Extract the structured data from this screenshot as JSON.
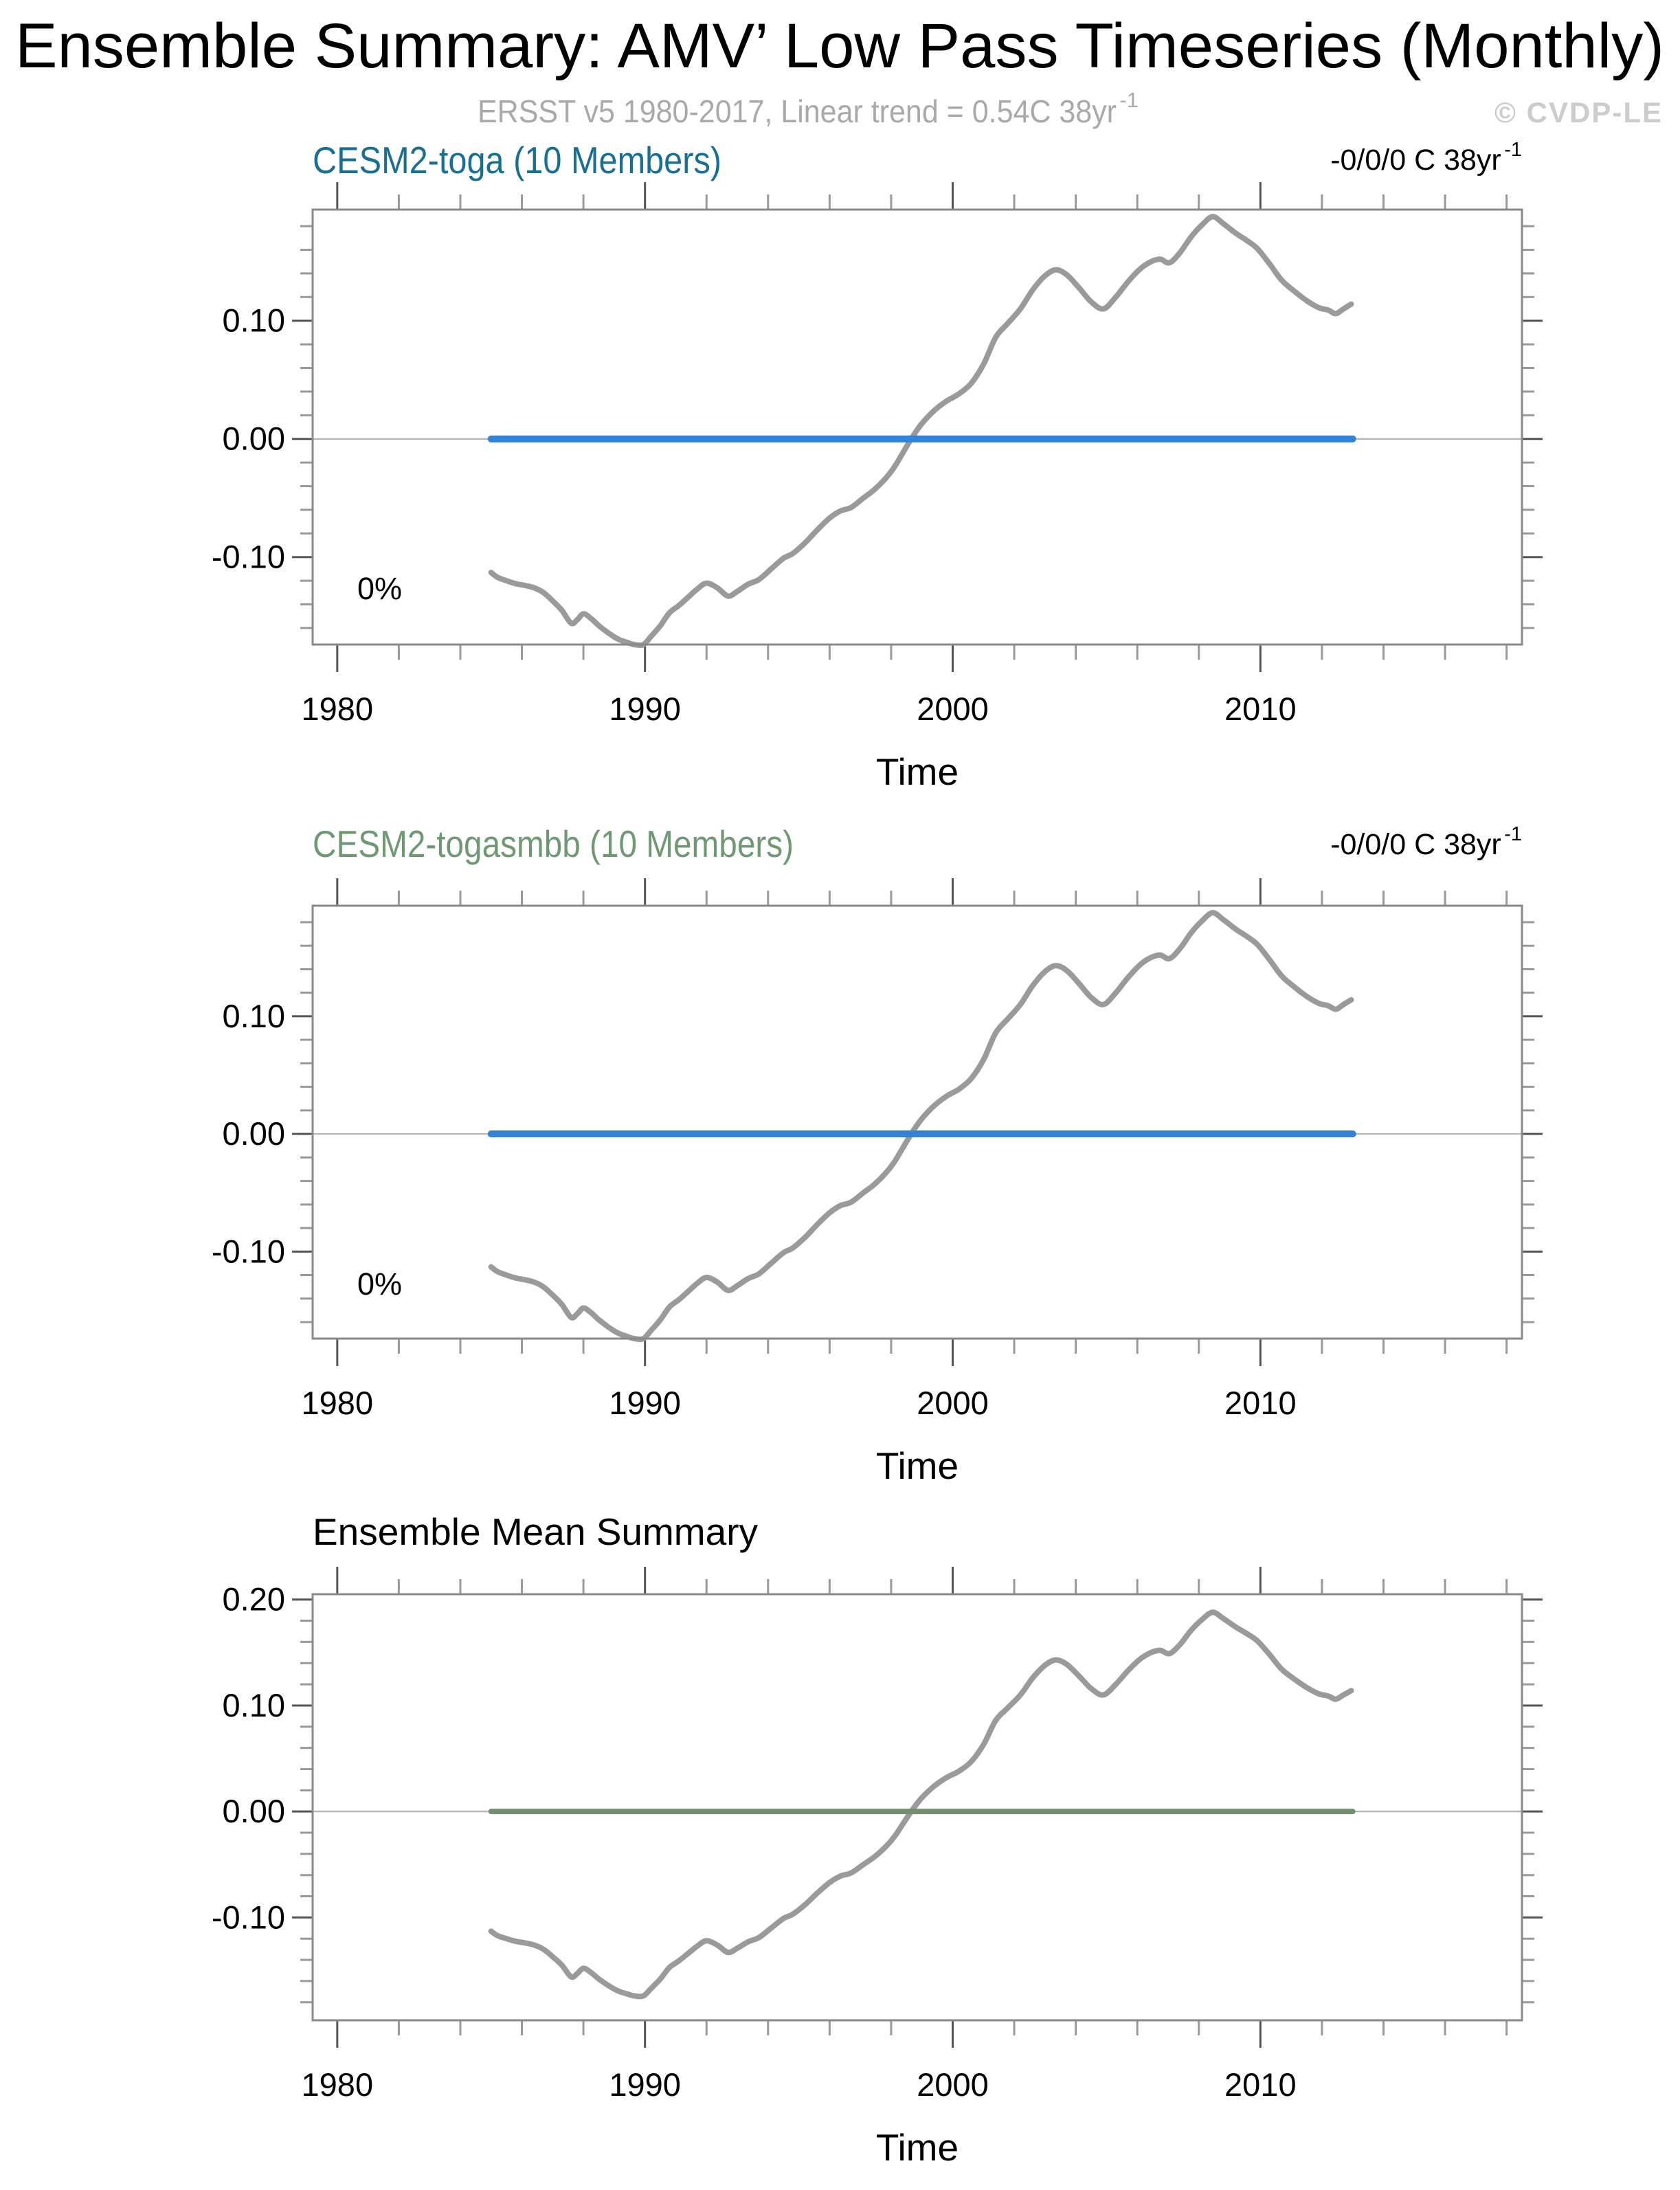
{
  "header": {
    "title": "Ensemble Summary: AMV’ Low Pass Timeseries (Monthly)",
    "subtitle": {
      "main": "ERSST v5 1980-2017, Linear trend = 0.54C 38yr",
      "sup": "-1"
    },
    "watermark": "© CVDP-LE"
  },
  "chart_data": {
    "type": "line",
    "x_axis": {
      "label": "Time",
      "major_ticks": [
        1980,
        1990,
        2000,
        2010
      ],
      "tick_labels": [
        "1980",
        "1990",
        "2000",
        "2010"
      ],
      "minor_step_years": 2,
      "xlim": [
        1979.2,
        2018.5
      ]
    },
    "y_minor_step": 0.02,
    "observed": {
      "name": "ERSST v5 AMV low-pass timeseries",
      "color": "#9a9a9a",
      "points": [
        [
          1985.0,
          -0.113
        ],
        [
          1985.2,
          -0.117
        ],
        [
          1985.5,
          -0.12
        ],
        [
          1985.8,
          -0.1225
        ],
        [
          1986.1,
          -0.124
        ],
        [
          1986.4,
          -0.126
        ],
        [
          1986.7,
          -0.13
        ],
        [
          1987.0,
          -0.137
        ],
        [
          1987.3,
          -0.145
        ],
        [
          1987.6,
          -0.156
        ],
        [
          1987.8,
          -0.153
        ],
        [
          1988.0,
          -0.148
        ],
        [
          1988.25,
          -0.152
        ],
        [
          1988.5,
          -0.158
        ],
        [
          1988.8,
          -0.164
        ],
        [
          1989.1,
          -0.169
        ],
        [
          1989.4,
          -0.172
        ],
        [
          1989.65,
          -0.174
        ],
        [
          1989.95,
          -0.174
        ],
        [
          1990.2,
          -0.167
        ],
        [
          1990.5,
          -0.158
        ],
        [
          1990.8,
          -0.147
        ],
        [
          1991.1,
          -0.141
        ],
        [
          1991.4,
          -0.134
        ],
        [
          1991.7,
          -0.127
        ],
        [
          1992.0,
          -0.122
        ],
        [
          1992.35,
          -0.126
        ],
        [
          1992.7,
          -0.133
        ],
        [
          1993.0,
          -0.129
        ],
        [
          1993.35,
          -0.123
        ],
        [
          1993.7,
          -0.119
        ],
        [
          1994.1,
          -0.11
        ],
        [
          1994.5,
          -0.101
        ],
        [
          1994.8,
          -0.097
        ],
        [
          1995.2,
          -0.088
        ],
        [
          1995.6,
          -0.077
        ],
        [
          1996.0,
          -0.067
        ],
        [
          1996.35,
          -0.061
        ],
        [
          1996.7,
          -0.058
        ],
        [
          1997.1,
          -0.05
        ],
        [
          1997.45,
          -0.043
        ],
        [
          1997.8,
          -0.034
        ],
        [
          1998.1,
          -0.024
        ],
        [
          1998.4,
          -0.011
        ],
        [
          1998.7,
          0.002
        ],
        [
          1999.0,
          0.013
        ],
        [
          1999.4,
          0.024
        ],
        [
          1999.8,
          0.032
        ],
        [
          2000.2,
          0.038
        ],
        [
          2000.6,
          0.047
        ],
        [
          2001.0,
          0.063
        ],
        [
          2001.4,
          0.086
        ],
        [
          2001.8,
          0.098
        ],
        [
          2002.2,
          0.11
        ],
        [
          2002.6,
          0.126
        ],
        [
          2003.0,
          0.138
        ],
        [
          2003.35,
          0.143
        ],
        [
          2003.7,
          0.139
        ],
        [
          2004.1,
          0.128
        ],
        [
          2004.5,
          0.116
        ],
        [
          2004.9,
          0.11
        ],
        [
          2005.3,
          0.12
        ],
        [
          2005.7,
          0.133
        ],
        [
          2006.1,
          0.144
        ],
        [
          2006.45,
          0.15
        ],
        [
          2006.75,
          0.152
        ],
        [
          2007.05,
          0.149
        ],
        [
          2007.4,
          0.158
        ],
        [
          2007.75,
          0.171
        ],
        [
          2008.1,
          0.181
        ],
        [
          2008.45,
          0.188
        ],
        [
          2008.8,
          0.182
        ],
        [
          2009.2,
          0.174
        ],
        [
          2009.55,
          0.168
        ],
        [
          2009.9,
          0.161
        ],
        [
          2010.3,
          0.148
        ],
        [
          2010.7,
          0.134
        ],
        [
          2011.1,
          0.125
        ],
        [
          2011.5,
          0.117
        ],
        [
          2011.9,
          0.111
        ],
        [
          2012.2,
          0.109
        ],
        [
          2012.45,
          0.106
        ],
        [
          2012.7,
          0.11
        ],
        [
          2012.95,
          0.114
        ]
      ]
    },
    "panels": [
      {
        "id": "cesm2-toga",
        "title": "CESM2-toga (10 Members)",
        "title_color": "#186f91",
        "trend_label": {
          "main": "-0/0/0 C 38yr",
          "sup": "-1"
        },
        "member_pct_label": "0%",
        "y_tick_values": [
          0.1,
          0.0,
          -0.1
        ],
        "y_tick_labels": [
          "0.10",
          "0.00",
          "-0.10"
        ],
        "ylim": [
          -0.174,
          0.194
        ],
        "ensemble_zero_line": {
          "color": "#3282d8",
          "x_range": [
            1985,
            2013
          ],
          "y": 0.0
        }
      },
      {
        "id": "cesm2-togasmbb",
        "title": "CESM2-togasmbb (10 Members)",
        "title_color": "#6f9972",
        "trend_label": {
          "main": "-0/0/0 C 38yr",
          "sup": "-1"
        },
        "member_pct_label": "0%",
        "y_tick_values": [
          0.1,
          0.0,
          -0.1
        ],
        "y_tick_labels": [
          "0.10",
          "0.00",
          "-0.10"
        ],
        "ylim": [
          -0.174,
          0.194
        ],
        "ensemble_zero_line": {
          "color": "#3282d8",
          "x_range": [
            1985,
            2013
          ],
          "y": 0.0
        }
      },
      {
        "id": "ensemble-mean-summary",
        "title": "Ensemble Mean Summary",
        "title_color": "#000000",
        "trend_label": null,
        "member_pct_label": null,
        "y_tick_values": [
          0.2,
          0.1,
          0.0,
          -0.1
        ],
        "y_tick_labels": [
          "0.20",
          "0.10",
          "0.00",
          "-0.10"
        ],
        "ylim": [
          -0.197,
          0.205
        ],
        "ensemble_zero_line": {
          "color": "#70906e",
          "x_range": [
            1985,
            2013
          ],
          "y": 0.0
        }
      }
    ],
    "zero_reference_line_color": "#b9b9b9",
    "axis_box_color": "#898989",
    "grid": false,
    "legend": false
  }
}
